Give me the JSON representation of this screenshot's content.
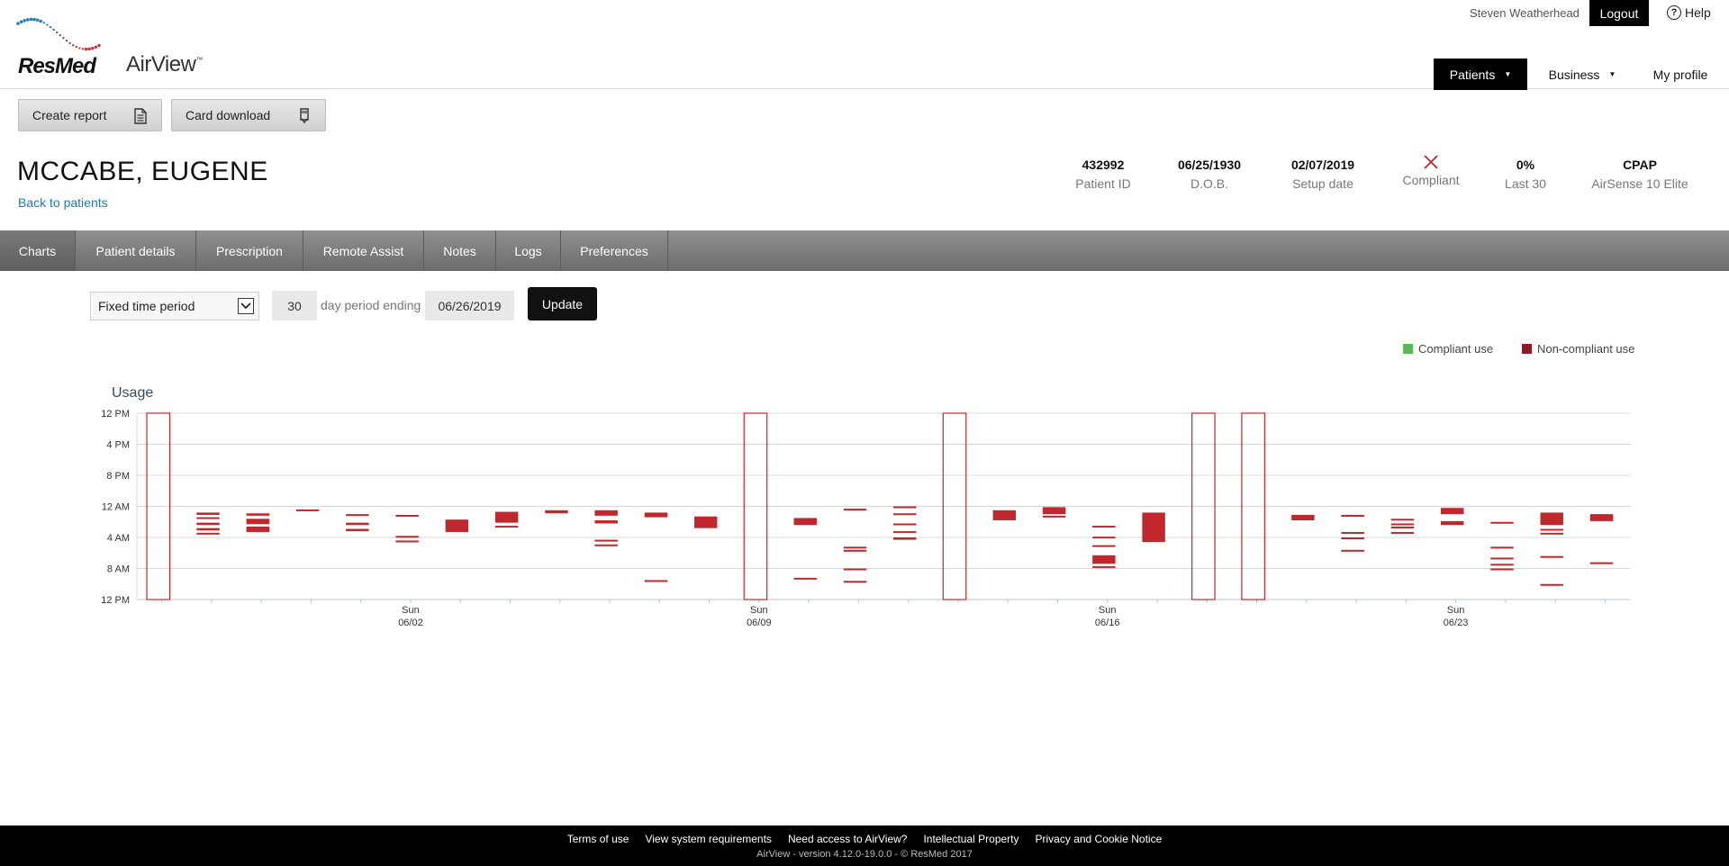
{
  "brand": {
    "logo_text": "ResMed",
    "app_name": "AirView",
    "tm": "™"
  },
  "header": {
    "user_name": "Steven Weatherhead",
    "logout_label": "Logout",
    "help_label": "Help",
    "nav": {
      "patients": "Patients",
      "business": "Business",
      "my_profile": "My profile"
    }
  },
  "toolbar": {
    "create_report": "Create report",
    "card_download": "Card download"
  },
  "patient": {
    "name": "MCCABE, EUGENE",
    "back_link": "Back to patients",
    "stats": {
      "patient_id": {
        "value": "432992",
        "label": "Patient ID"
      },
      "dob": {
        "value": "06/25/1930",
        "label": "D.O.B."
      },
      "setup": {
        "value": "02/07/2019",
        "label": "Setup date"
      },
      "compliant": {
        "label": "Compliant",
        "icon": "x-icon",
        "color": "#c0282d"
      },
      "last30": {
        "value": "0%",
        "label": "Last 30"
      },
      "device": {
        "value": "CPAP",
        "label": "AirSense 10 Elite"
      }
    }
  },
  "tabs": [
    "Charts",
    "Patient details",
    "Prescription",
    "Remote Assist",
    "Notes",
    "Logs",
    "Preferences"
  ],
  "controls": {
    "period_type": "Fixed time period",
    "days": "30",
    "period_text": "day period ending",
    "end_date": "06/26/2019",
    "update_label": "Update"
  },
  "legend": {
    "compliant": {
      "label": "Compliant use",
      "color": "#5cb85c"
    },
    "non_compliant": {
      "label": "Non-compliant use",
      "color": "#8b1c24"
    }
  },
  "chart_data": {
    "type": "bar",
    "title": "Usage",
    "y_ticks": [
      "12 PM",
      "4 PM",
      "8 PM",
      "12 AM",
      "4 AM",
      "8 AM",
      "12 PM"
    ],
    "y_range_hours": [
      0,
      24
    ],
    "x_start": "05/28/2019",
    "days": 30,
    "x_labels": [
      {
        "day_index": 5,
        "top": "Sun",
        "bottom": "06/02"
      },
      {
        "day_index": 12,
        "top": "Sun",
        "bottom": "06/09"
      },
      {
        "day_index": 19,
        "top": "Sun",
        "bottom": "06/16"
      },
      {
        "day_index": 26,
        "top": "Sun",
        "bottom": "06/23"
      }
    ],
    "bar_color": "#c0282d",
    "no_data_days": [
      0,
      12,
      16,
      21,
      22
    ],
    "sessions": [
      {
        "day": 1,
        "bars": [
          [
            12.8,
            13.1
          ],
          [
            13.4,
            13.6
          ],
          [
            14.1,
            14.4
          ],
          [
            14.8,
            15.1
          ],
          [
            15.4,
            15.6
          ]
        ]
      },
      {
        "day": 2,
        "bars": [
          [
            12.9,
            13.2
          ],
          [
            13.6,
            14.3
          ],
          [
            14.6,
            15.3
          ]
        ]
      },
      {
        "day": 3,
        "bars": [
          [
            12.4,
            12.6
          ]
        ]
      },
      {
        "day": 4,
        "bars": [
          [
            13.0,
            13.2
          ],
          [
            14.1,
            14.4
          ],
          [
            14.9,
            15.2
          ]
        ]
      },
      {
        "day": 5,
        "bars": [
          [
            13.1,
            13.3
          ],
          [
            15.8,
            16.0
          ],
          [
            16.4,
            16.6
          ]
        ]
      },
      {
        "day": 6,
        "bars": [
          [
            13.7,
            15.3
          ]
        ]
      },
      {
        "day": 7,
        "bars": [
          [
            12.7,
            14.1
          ],
          [
            14.5,
            14.7
          ]
        ]
      },
      {
        "day": 8,
        "bars": [
          [
            12.5,
            12.9
          ]
        ]
      },
      {
        "day": 9,
        "bars": [
          [
            12.5,
            13.2
          ],
          [
            13.8,
            14.2
          ],
          [
            16.3,
            16.5
          ],
          [
            16.9,
            17.1
          ]
        ]
      },
      {
        "day": 10,
        "bars": [
          [
            12.8,
            13.4
          ],
          [
            21.5,
            21.7
          ]
        ]
      },
      {
        "day": 11,
        "bars": [
          [
            13.3,
            14.8
          ]
        ]
      },
      {
        "day": 13,
        "bars": [
          [
            13.5,
            14.4
          ],
          [
            21.2,
            21.4
          ]
        ]
      },
      {
        "day": 14,
        "bars": [
          [
            12.3,
            12.5
          ],
          [
            17.2,
            17.4
          ],
          [
            17.6,
            17.8
          ],
          [
            20.0,
            20.2
          ],
          [
            21.6,
            21.8
          ]
        ]
      },
      {
        "day": 15,
        "bars": [
          [
            12.0,
            12.2
          ],
          [
            12.9,
            13.1
          ],
          [
            14.2,
            14.4
          ],
          [
            15.2,
            15.4
          ],
          [
            16.0,
            16.3
          ]
        ]
      },
      {
        "day": 17,
        "bars": [
          [
            12.5,
            13.8
          ]
        ]
      },
      {
        "day": 18,
        "bars": [
          [
            12.1,
            13.0
          ],
          [
            13.2,
            13.4
          ]
        ]
      },
      {
        "day": 19,
        "bars": [
          [
            14.5,
            14.7
          ],
          [
            15.9,
            16.1
          ],
          [
            17.0,
            17.2
          ],
          [
            18.3,
            19.4
          ],
          [
            19.7,
            19.9
          ]
        ]
      },
      {
        "day": 20,
        "bars": [
          [
            12.8,
            16.6
          ]
        ]
      },
      {
        "day": 23,
        "bars": [
          [
            13.1,
            13.8
          ]
        ]
      },
      {
        "day": 24,
        "bars": [
          [
            13.1,
            13.3
          ],
          [
            15.3,
            15.5
          ],
          [
            16.0,
            16.2
          ],
          [
            17.6,
            17.8
          ]
        ]
      },
      {
        "day": 25,
        "bars": [
          [
            13.6,
            13.8
          ],
          [
            14.2,
            14.4
          ],
          [
            14.6,
            14.8
          ],
          [
            15.3,
            15.5
          ]
        ]
      },
      {
        "day": 26,
        "bars": [
          [
            12.2,
            13.0
          ],
          [
            13.9,
            14.4
          ]
        ]
      },
      {
        "day": 27,
        "bars": [
          [
            14.0,
            14.2
          ],
          [
            17.2,
            17.4
          ],
          [
            18.6,
            18.8
          ],
          [
            19.4,
            19.6
          ],
          [
            20.0,
            20.2
          ]
        ]
      },
      {
        "day": 28,
        "bars": [
          [
            12.8,
            14.4
          ],
          [
            14.9,
            15.1
          ],
          [
            15.4,
            15.6
          ],
          [
            18.4,
            18.6
          ],
          [
            22.0,
            22.2
          ]
        ]
      },
      {
        "day": 29,
        "bars": [
          [
            13.0,
            13.9
          ],
          [
            19.2,
            19.4
          ]
        ]
      }
    ]
  },
  "footer": {
    "links": [
      "Terms of use",
      "View system requirements",
      "Need access to AirView?",
      "Intellectual Property",
      "Privacy and Cookie Notice"
    ],
    "version": "AirView - version 4.12.0-19.0.0  - © ResMed 2017"
  }
}
